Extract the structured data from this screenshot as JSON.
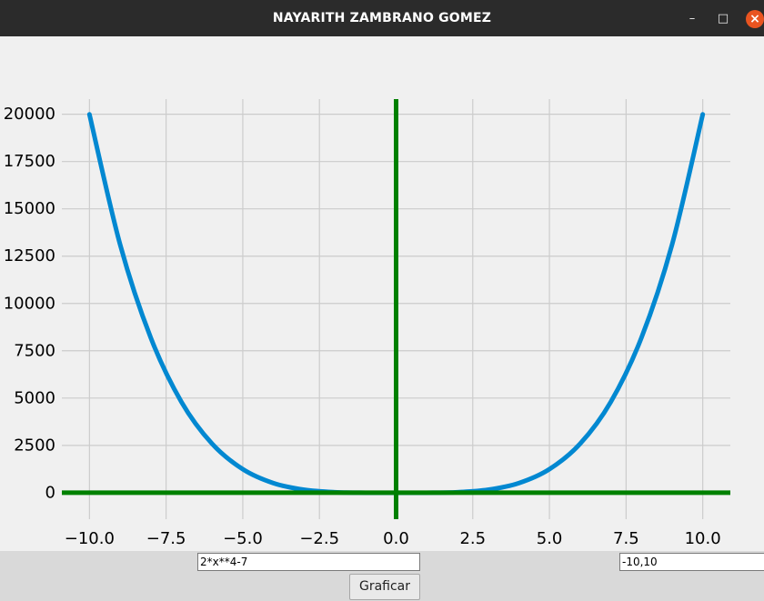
{
  "window": {
    "title": "NAYARITH ZAMBRANO GOMEZ",
    "minimize_symbol": "–",
    "maximize_symbol": "□",
    "close_symbol": "×",
    "close_color": "#e95420"
  },
  "chart_data": {
    "type": "line",
    "title": "",
    "xlabel": "",
    "ylabel": "",
    "xlim": [
      -10.9,
      10.9
    ],
    "ylim": [
      -1400,
      20800
    ],
    "xticks": [
      -10.0,
      -7.5,
      -5.0,
      -2.5,
      0.0,
      2.5,
      5.0,
      7.5,
      10.0
    ],
    "xtick_labels": [
      "−10.0",
      "−7.5",
      "−5.0",
      "−2.5",
      "0.0",
      "2.5",
      "5.0",
      "7.5",
      "10.0"
    ],
    "yticks": [
      0,
      2500,
      5000,
      7500,
      10000,
      12500,
      15000,
      17500,
      20000
    ],
    "ytick_labels": [
      "0",
      "2500",
      "5000",
      "7500",
      "10000",
      "12500",
      "15000",
      "17500",
      "20000"
    ],
    "grid": true,
    "series": [
      {
        "color": "#0288d1",
        "x": [
          -10,
          -9,
          -8,
          -7,
          -6,
          -5,
          -4,
          -3,
          -2,
          -1,
          0,
          1,
          2,
          3,
          4,
          5,
          6,
          7,
          8,
          9,
          10
        ],
        "y": [
          19993,
          13115,
          8185,
          4795,
          2585,
          1243,
          505,
          155,
          25,
          -5,
          -7,
          -5,
          25,
          155,
          505,
          1243,
          2585,
          4795,
          8185,
          13115,
          19993
        ]
      }
    ],
    "axis_lines_color": "#008000",
    "grid_color": "#cccccc"
  },
  "controls": {
    "function_input": "2*x**4-7",
    "range_input": "-10,10",
    "plot_button": "Graficar"
  }
}
